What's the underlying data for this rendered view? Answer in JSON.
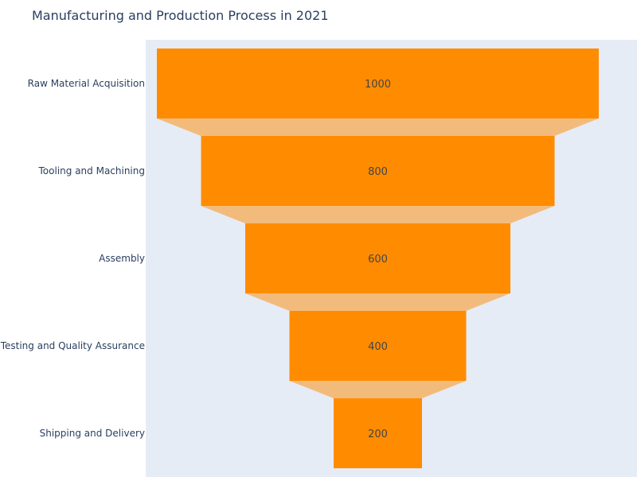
{
  "chart_data": {
    "type": "funnel",
    "title": "Manufacturing and Production Process in 2021",
    "categories": [
      "Raw Material Acquisition",
      "Tooling and Machining",
      "Assembly",
      "Testing and Quality Assurance",
      "Shipping and Delivery"
    ],
    "values": [
      1000,
      800,
      600,
      400,
      200
    ],
    "text_labels": [
      "1000",
      "800",
      "600",
      "400",
      "200"
    ],
    "colors": {
      "bar": "#ff8c00",
      "connector": "#f2bb7c",
      "plot_background": "#e5ecf6",
      "text": "#2a3f5f",
      "value_text": "#444444"
    }
  }
}
